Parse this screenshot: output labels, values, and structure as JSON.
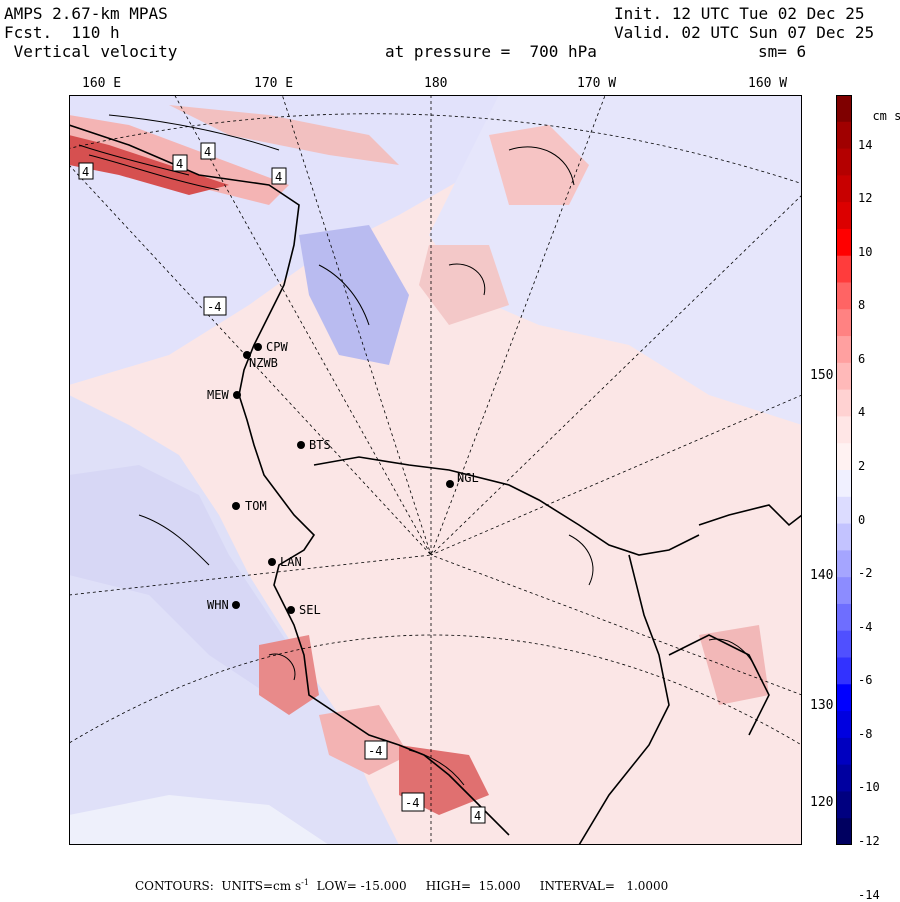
{
  "header": {
    "model": "AMPS 2.67-km MPAS",
    "forecast": "Fcst.  110 h",
    "field": " Vertical velocity",
    "init": "Init. 12 UTC Tue 02 Dec 25",
    "valid": "Valid. 02 UTC Sun 07 Dec 25",
    "pressure": "at pressure =  700 hPa",
    "smoothing": "sm= 6"
  },
  "lon_labels": [
    "160 E",
    "170 E",
    "180",
    "170 W",
    "160 W"
  ],
  "lat_labels": [
    "150 W",
    "140 W",
    "130 W",
    "120 W"
  ],
  "colorbar": {
    "units": "cm s",
    "units_exp": "-1",
    "ticks": [
      "14",
      "12",
      "10",
      "8",
      "6",
      "4",
      "2",
      "0",
      "-2",
      "-4",
      "-6",
      "-8",
      "-10",
      "-12",
      "-14"
    ],
    "colors": [
      "#7f0000",
      "#a00000",
      "#b40000",
      "#c80000",
      "#dc0000",
      "#ff0000",
      "#ff3c3c",
      "#ff6464",
      "#ff8282",
      "#ffa0a0",
      "#ffb9b9",
      "#ffd2d2",
      "#ffe6e6",
      "#fff2f2",
      "#f0f0ff",
      "#dcdcff",
      "#c3c3ff",
      "#a5a5ff",
      "#8c8cff",
      "#6e6eff",
      "#5050ff",
      "#3232ff",
      "#0000ff",
      "#0000e0",
      "#0000c0",
      "#0000a0",
      "#000080",
      "#000060"
    ]
  },
  "stations": [
    {
      "code": "CPW"
    },
    {
      "code": "NZWB"
    },
    {
      "code": "MEW"
    },
    {
      "code": "BTS"
    },
    {
      "code": "NGL"
    },
    {
      "code": "TOM"
    },
    {
      "code": "LAN"
    },
    {
      "code": "WHN"
    },
    {
      "code": "SEL"
    }
  ],
  "contour_labels": [
    "4",
    "4",
    "4",
    "4",
    "-4",
    "-4",
    "-4",
    "4"
  ],
  "footer": {
    "contours": "CONTOURS:",
    "units": "UNITS=cm s",
    "units_exp": "-1",
    "low": "LOW= -15.000",
    "high": "HIGH=  15.000",
    "interval": "INTERVAL=   1.0000"
  }
}
